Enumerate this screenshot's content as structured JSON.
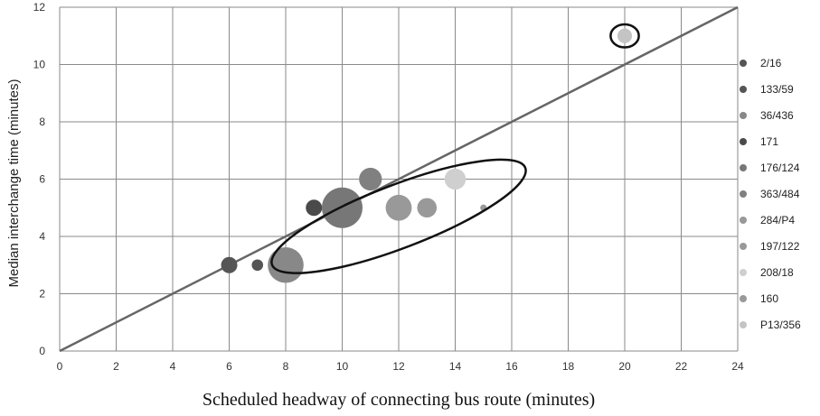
{
  "chart_data": {
    "type": "scatter",
    "subtype": "bubble",
    "title": "",
    "xlabel": "Scheduled headway of connecting bus route (minutes)",
    "ylabel": "Median interchange time (minutes)",
    "xlim": [
      0,
      24
    ],
    "ylim": [
      0,
      12
    ],
    "xticks": [
      "0",
      "2",
      "4",
      "6",
      "8",
      "10",
      "12",
      "14",
      "16",
      "18",
      "20",
      "22",
      "24"
    ],
    "yticks": [
      "0",
      "2",
      "4",
      "6",
      "8",
      "10",
      "12"
    ],
    "grid": true,
    "legend_position": "right",
    "reference_line": {
      "x": [
        0,
        24
      ],
      "y": [
        0,
        12
      ]
    },
    "series": [
      {
        "name": "2/16",
        "color": "#555555",
        "points": [
          {
            "x": 6,
            "y": 3,
            "size": 1.0
          }
        ]
      },
      {
        "name": "133/59",
        "color": "#555555",
        "points": [
          {
            "x": 7,
            "y": 3,
            "size": 0.7
          }
        ]
      },
      {
        "name": "36/436",
        "color": "#888888",
        "points": [
          {
            "x": 8,
            "y": 3,
            "size": 2.2
          }
        ]
      },
      {
        "name": "171",
        "color": "#4a4a4a",
        "points": [
          {
            "x": 9,
            "y": 5,
            "size": 1.0
          }
        ]
      },
      {
        "name": "176/124",
        "color": "#777777",
        "points": [
          {
            "x": 10,
            "y": 5,
            "size": 2.5
          }
        ]
      },
      {
        "name": "363/484",
        "color": "#808080",
        "points": [
          {
            "x": 11,
            "y": 6,
            "size": 1.4
          }
        ]
      },
      {
        "name": "284/P4",
        "color": "#999999",
        "points": [
          {
            "x": 12,
            "y": 5,
            "size": 1.6
          }
        ]
      },
      {
        "name": "197/122",
        "color": "#999999",
        "points": [
          {
            "x": 13,
            "y": 5,
            "size": 1.2
          }
        ]
      },
      {
        "name": "208/18",
        "color": "#cfcfcf",
        "points": [
          {
            "x": 14,
            "y": 6,
            "size": 1.3
          }
        ]
      },
      {
        "name": "160",
        "color": "#999999",
        "points": [
          {
            "x": 15,
            "y": 5,
            "size": 0.4
          }
        ]
      },
      {
        "name": "P13/356",
        "color": "#c4c4c4",
        "points": [
          {
            "x": 20,
            "y": 11,
            "size": 0.9
          }
        ]
      }
    ],
    "annotations": [
      {
        "shape": "ellipse",
        "center": [
          12,
          4.7
        ],
        "rx": 4.8,
        "ry": 1.1,
        "angle_deg": 21
      },
      {
        "shape": "ellipse",
        "center": [
          20,
          11
        ],
        "rx": 0.5,
        "ry": 0.4,
        "angle_deg": 0
      }
    ]
  }
}
